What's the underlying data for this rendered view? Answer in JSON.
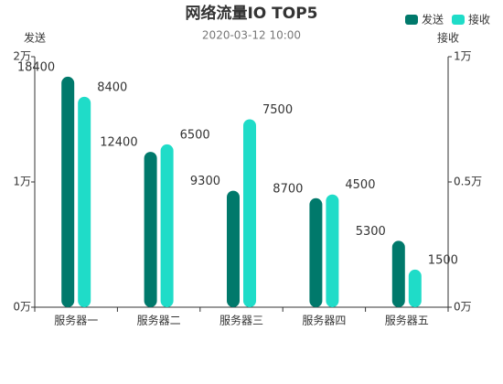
{
  "chart_data": {
    "type": "bar",
    "title": "网络流量IO TOP5",
    "subtitle": "2020-03-12 10:00",
    "categories": [
      "服务器一",
      "服务器二",
      "服务器三",
      "服务器四",
      "服务器五"
    ],
    "ylabel": "发送",
    "y2label": "接收",
    "ylim": [
      0,
      20000
    ],
    "yticks": [
      {
        "value": 0,
        "label": "0万"
      },
      {
        "value": 10000,
        "label": "1万"
      },
      {
        "value": 20000,
        "label": "2万"
      }
    ],
    "y2lim": [
      0,
      10000
    ],
    "y2ticks": [
      {
        "value": 0,
        "label": "0万"
      },
      {
        "value": 5000,
        "label": "0.5万"
      },
      {
        "value": 10000,
        "label": "1万"
      }
    ],
    "legend": "top-right",
    "series": [
      {
        "name": "发送",
        "color": "#00796b",
        "values": [
          18400,
          12400,
          9300,
          8700,
          5300
        ]
      },
      {
        "name": "接收",
        "color": "#1fdcc8",
        "axis": "y2",
        "values": [
          8400,
          6500,
          7500,
          4500,
          1500
        ]
      }
    ]
  }
}
